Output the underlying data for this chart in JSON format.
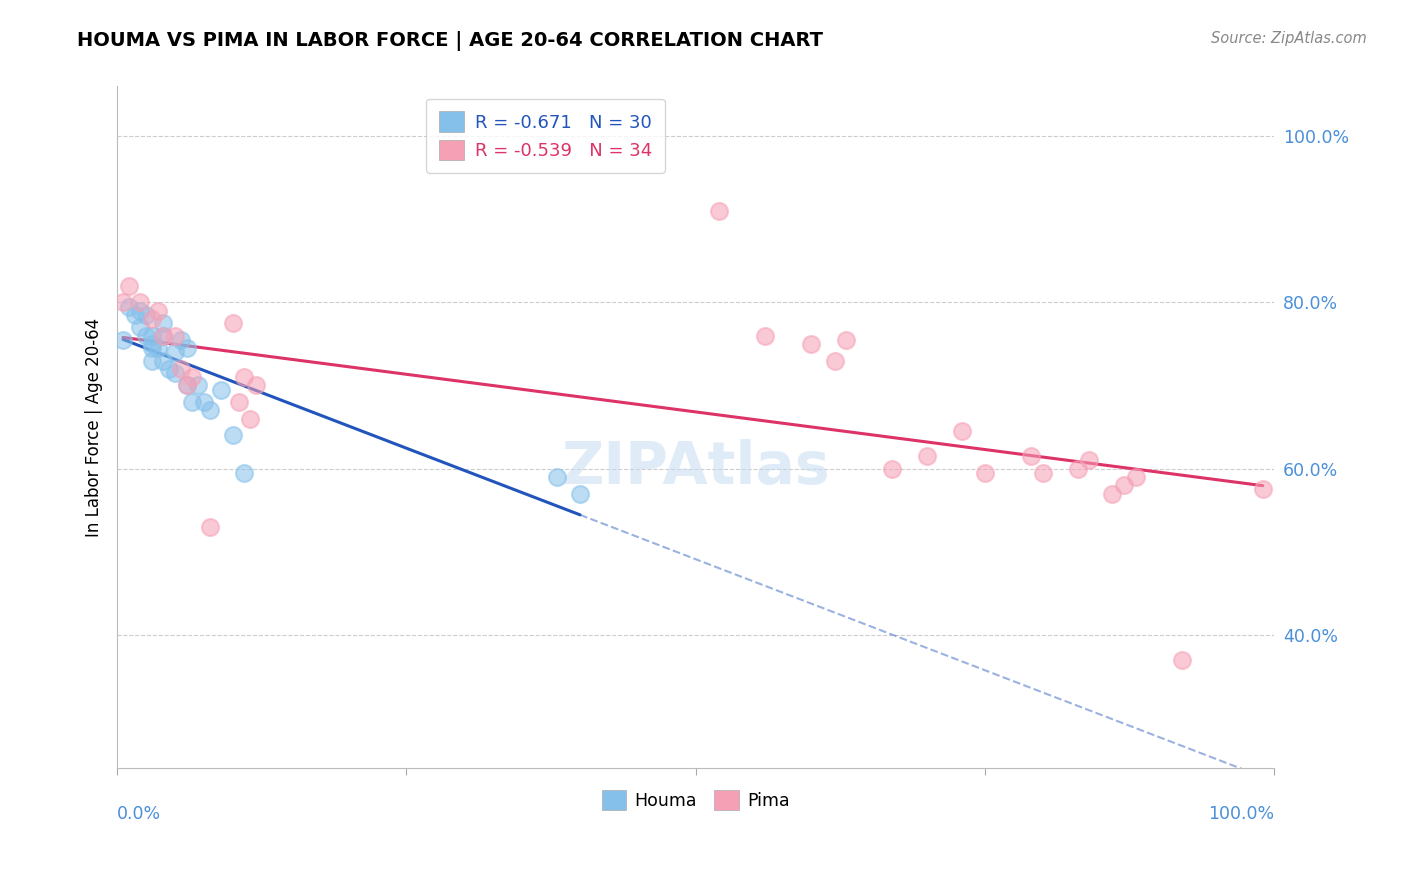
{
  "title": "HOUMA VS PIMA IN LABOR FORCE | AGE 20-64 CORRELATION CHART",
  "source": "Source: ZipAtlas.com",
  "ylabel": "In Labor Force | Age 20-64",
  "watermark": "ZIPAtlas",
  "houma_R": -0.671,
  "houma_N": 30,
  "pima_R": -0.539,
  "pima_N": 34,
  "houma_color": "#85C0EA",
  "pima_color": "#F5A0B5",
  "houma_line_color": "#2255BB",
  "pima_line_color": "#DD3366",
  "background_color": "#FFFFFF",
  "grid_color": "#C8C8C8",
  "ytick_color": "#4A90D9",
  "xtick_color": "#4A90D9",
  "houma_x": [
    0.005,
    0.01,
    0.015,
    0.02,
    0.02,
    0.025,
    0.025,
    0.03,
    0.03,
    0.03,
    0.03,
    0.035,
    0.04,
    0.04,
    0.04,
    0.045,
    0.05,
    0.05,
    0.055,
    0.06,
    0.06,
    0.065,
    0.07,
    0.075,
    0.08,
    0.09,
    0.1,
    0.11,
    0.38,
    0.4
  ],
  "houma_y": [
    0.755,
    0.795,
    0.785,
    0.79,
    0.77,
    0.785,
    0.76,
    0.76,
    0.745,
    0.75,
    0.73,
    0.745,
    0.775,
    0.76,
    0.73,
    0.72,
    0.74,
    0.715,
    0.755,
    0.745,
    0.7,
    0.68,
    0.7,
    0.68,
    0.67,
    0.695,
    0.64,
    0.595,
    0.59,
    0.57
  ],
  "pima_x": [
    0.005,
    0.01,
    0.02,
    0.03,
    0.035,
    0.04,
    0.05,
    0.055,
    0.06,
    0.065,
    0.08,
    0.1,
    0.105,
    0.11,
    0.115,
    0.12,
    0.52,
    0.56,
    0.6,
    0.62,
    0.63,
    0.67,
    0.7,
    0.73,
    0.75,
    0.79,
    0.8,
    0.83,
    0.84,
    0.86,
    0.87,
    0.88,
    0.92,
    0.99
  ],
  "pima_y": [
    0.8,
    0.82,
    0.8,
    0.78,
    0.79,
    0.76,
    0.76,
    0.72,
    0.7,
    0.71,
    0.53,
    0.775,
    0.68,
    0.71,
    0.66,
    0.7,
    0.91,
    0.76,
    0.75,
    0.73,
    0.755,
    0.6,
    0.615,
    0.645,
    0.595,
    0.615,
    0.595,
    0.6,
    0.61,
    0.57,
    0.58,
    0.59,
    0.37,
    0.575
  ],
  "xlim": [
    0,
    1.0
  ],
  "ylim": [
    0.24,
    1.06
  ],
  "yticks": [
    0.4,
    0.6,
    0.8,
    1.0
  ],
  "ytick_labels": [
    "40.0%",
    "60.0%",
    "80.0%",
    "100.0%"
  ]
}
